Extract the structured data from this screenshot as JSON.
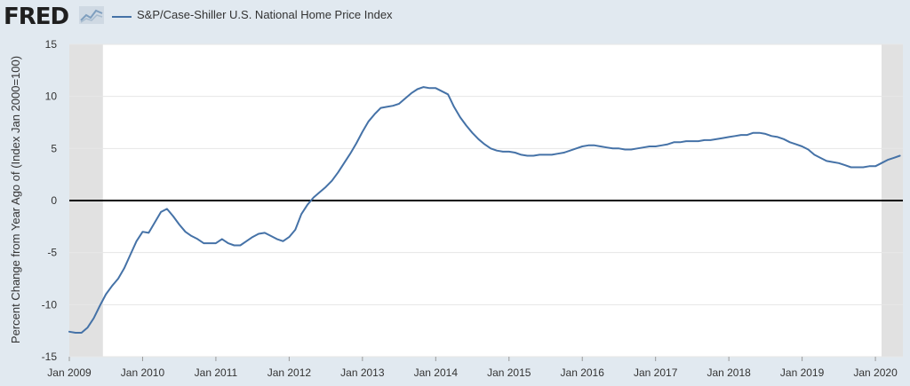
{
  "header": {
    "logo_text": "FRED",
    "logo_icon": "chart-line-icon",
    "legend_label": "S&P/Case-Shiller U.S. National Home Price Index"
  },
  "colors": {
    "background": "#e1e9f0",
    "plot_background": "#ffffff",
    "recession_shade": "#e1e1e1",
    "series": "#4572a7",
    "zero_line": "#000000",
    "grid": "#e6e6e6"
  },
  "chart_data": {
    "type": "line",
    "title": "",
    "ylabel": "Percent Change from Year Ago of (Index Jan 2000=100)",
    "xlabel": "",
    "ylim": [
      -15,
      15
    ],
    "yticks": [
      15,
      10,
      5,
      0,
      -5,
      -10,
      -15
    ],
    "xlim": [
      "2009-01",
      "2020-05"
    ],
    "xticks": [
      "Jan 2009",
      "Jan 2010",
      "Jan 2011",
      "Jan 2012",
      "Jan 2013",
      "Jan 2014",
      "Jan 2015",
      "Jan 2016",
      "Jan 2017",
      "Jan 2018",
      "Jan 2019",
      "Jan 2020"
    ],
    "recessions": [
      [
        "2009-01",
        "2009-06"
      ],
      [
        "2020-02",
        "2020-05"
      ]
    ],
    "grid": true,
    "series": [
      {
        "name": "S&P/Case-Shiller U.S. National Home Price Index",
        "x": [
          "2009-01",
          "2009-02",
          "2009-03",
          "2009-04",
          "2009-05",
          "2009-06",
          "2009-07",
          "2009-08",
          "2009-09",
          "2009-10",
          "2009-11",
          "2009-12",
          "2010-01",
          "2010-02",
          "2010-03",
          "2010-04",
          "2010-05",
          "2010-06",
          "2010-07",
          "2010-08",
          "2010-09",
          "2010-10",
          "2010-11",
          "2010-12",
          "2011-01",
          "2011-02",
          "2011-03",
          "2011-04",
          "2011-05",
          "2011-06",
          "2011-07",
          "2011-08",
          "2011-09",
          "2011-10",
          "2011-11",
          "2011-12",
          "2012-01",
          "2012-02",
          "2012-03",
          "2012-04",
          "2012-05",
          "2012-06",
          "2012-07",
          "2012-08",
          "2012-09",
          "2012-10",
          "2012-11",
          "2012-12",
          "2013-01",
          "2013-02",
          "2013-03",
          "2013-04",
          "2013-05",
          "2013-06",
          "2013-07",
          "2013-08",
          "2013-09",
          "2013-10",
          "2013-11",
          "2013-12",
          "2014-01",
          "2014-02",
          "2014-03",
          "2014-04",
          "2014-05",
          "2014-06",
          "2014-07",
          "2014-08",
          "2014-09",
          "2014-10",
          "2014-11",
          "2014-12",
          "2015-01",
          "2015-02",
          "2015-03",
          "2015-04",
          "2015-05",
          "2015-06",
          "2015-07",
          "2015-08",
          "2015-09",
          "2015-10",
          "2015-11",
          "2015-12",
          "2016-01",
          "2016-02",
          "2016-03",
          "2016-04",
          "2016-05",
          "2016-06",
          "2016-07",
          "2016-08",
          "2016-09",
          "2016-10",
          "2016-11",
          "2016-12",
          "2017-01",
          "2017-02",
          "2017-03",
          "2017-04",
          "2017-05",
          "2017-06",
          "2017-07",
          "2017-08",
          "2017-09",
          "2017-10",
          "2017-11",
          "2017-12",
          "2018-01",
          "2018-02",
          "2018-03",
          "2018-04",
          "2018-05",
          "2018-06",
          "2018-07",
          "2018-08",
          "2018-09",
          "2018-10",
          "2018-11",
          "2018-12",
          "2019-01",
          "2019-02",
          "2019-03",
          "2019-04",
          "2019-05",
          "2019-06",
          "2019-07",
          "2019-08",
          "2019-09",
          "2019-10",
          "2019-11",
          "2019-12",
          "2020-01",
          "2020-02",
          "2020-03",
          "2020-04",
          "2020-05"
        ],
        "values": [
          -12.6,
          -12.7,
          -12.7,
          -12.2,
          -11.3,
          -10.1,
          -9.0,
          -8.2,
          -7.5,
          -6.5,
          -5.2,
          -3.9,
          -3.0,
          -3.1,
          -2.1,
          -1.1,
          -0.8,
          -1.5,
          -2.3,
          -3.0,
          -3.4,
          -3.7,
          -4.1,
          -4.1,
          -4.1,
          -3.7,
          -4.1,
          -4.3,
          -4.3,
          -3.9,
          -3.5,
          -3.2,
          -3.1,
          -3.4,
          -3.7,
          -3.9,
          -3.5,
          -2.8,
          -1.3,
          -0.4,
          0.3,
          0.8,
          1.3,
          1.9,
          2.7,
          3.6,
          4.5,
          5.5,
          6.6,
          7.6,
          8.3,
          8.9,
          9.0,
          9.1,
          9.3,
          9.8,
          10.3,
          10.7,
          10.9,
          10.8,
          10.8,
          10.5,
          10.2,
          9.0,
          8.0,
          7.2,
          6.5,
          5.9,
          5.4,
          5.0,
          4.8,
          4.7,
          4.7,
          4.6,
          4.4,
          4.3,
          4.3,
          4.4,
          4.4,
          4.4,
          4.5,
          4.6,
          4.8,
          5.0,
          5.2,
          5.3,
          5.3,
          5.2,
          5.1,
          5.0,
          5.0,
          4.9,
          4.9,
          5.0,
          5.1,
          5.2,
          5.2,
          5.3,
          5.4,
          5.6,
          5.6,
          5.7,
          5.7,
          5.7,
          5.8,
          5.8,
          5.9,
          6.0,
          6.1,
          6.2,
          6.3,
          6.3,
          6.5,
          6.5,
          6.4,
          6.2,
          6.1,
          5.9,
          5.6,
          5.4,
          5.2,
          4.9,
          4.4,
          4.1,
          3.8,
          3.7,
          3.6,
          3.4,
          3.2,
          3.2,
          3.2,
          3.3,
          3.3,
          3.6,
          3.9,
          4.1,
          4.3
        ]
      }
    ]
  }
}
